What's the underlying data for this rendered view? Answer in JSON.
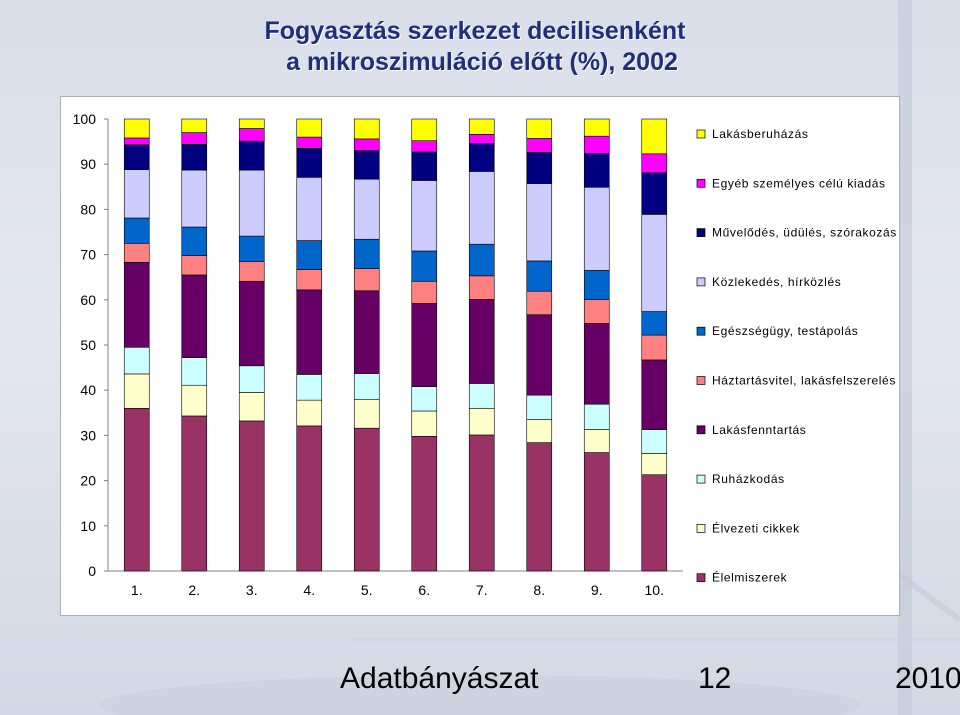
{
  "slide": {
    "title_line1": "Fogyasztás szerkezet decilisenként",
    "title_line2": "a mikroszimuláció előtt (%), 2002",
    "footer_left": "Adatbányászat",
    "footer_mid": "12",
    "footer_right": "2010"
  },
  "chart_data": {
    "type": "bar",
    "stacked": true,
    "title": "",
    "xlabel": "",
    "ylabel": "",
    "ylim": [
      0,
      100
    ],
    "yticks": [
      0,
      10,
      20,
      30,
      40,
      50,
      60,
      70,
      80,
      90,
      100
    ],
    "categories": [
      "1.",
      "2.",
      "3.",
      "4.",
      "5.",
      "6.",
      "7.",
      "8.",
      "9.",
      "10."
    ],
    "legend_position": "right",
    "grid": false,
    "series": [
      {
        "name": "Élelmiszerek",
        "color": "#993366",
        "values": [
          36.0,
          34.3,
          33.2,
          32.1,
          31.6,
          29.8,
          30.1,
          28.4,
          26.2,
          21.3
        ]
      },
      {
        "name": "Élvezeti cikkek",
        "color": "#FFFFCC",
        "values": [
          7.6,
          6.8,
          6.3,
          5.7,
          6.3,
          5.6,
          5.9,
          5.1,
          5.1,
          4.7
        ]
      },
      {
        "name": "Ruházkodás",
        "color": "#CCFFFF",
        "values": [
          5.9,
          6.1,
          5.9,
          5.7,
          5.8,
          5.4,
          5.5,
          5.4,
          5.6,
          5.3
        ]
      },
      {
        "name": "Lakásfenntartás",
        "color": "#660066",
        "values": [
          18.8,
          18.3,
          18.7,
          18.7,
          18.3,
          18.4,
          18.6,
          17.8,
          17.9,
          15.4
        ]
      },
      {
        "name": "Háztartásvitel, lakásfelszerelés",
        "color": "#FF8080",
        "values": [
          4.2,
          4.3,
          4.4,
          4.5,
          4.9,
          4.9,
          5.2,
          5.2,
          5.3,
          5.5
        ]
      },
      {
        "name": "Egészségügy, testápolás",
        "color": "#0066CC",
        "values": [
          5.6,
          6.3,
          5.6,
          6.4,
          6.5,
          6.7,
          7.0,
          6.7,
          6.4,
          5.2
        ]
      },
      {
        "name": "Közlekedés, hírközlés",
        "color": "#CCCCFF",
        "values": [
          10.7,
          12.6,
          14.6,
          14.0,
          13.3,
          15.6,
          16.1,
          17.1,
          18.4,
          21.5
        ]
      },
      {
        "name": "Művelődés, üdülés, szórakozás",
        "color": "#000080",
        "values": [
          5.5,
          5.7,
          6.4,
          6.4,
          6.3,
          6.3,
          6.2,
          6.9,
          7.5,
          9.2
        ]
      },
      {
        "name": "Egyéb személyes célú kiadás",
        "color": "#FF00FF",
        "values": [
          1.5,
          2.6,
          2.8,
          2.5,
          2.6,
          2.5,
          2.0,
          3.1,
          3.8,
          4.2
        ]
      },
      {
        "name": "Lakásberuházás",
        "color": "#FFFF00",
        "values": [
          4.2,
          3.0,
          2.1,
          4.0,
          4.4,
          4.8,
          3.4,
          4.3,
          3.8,
          7.7
        ]
      }
    ]
  }
}
